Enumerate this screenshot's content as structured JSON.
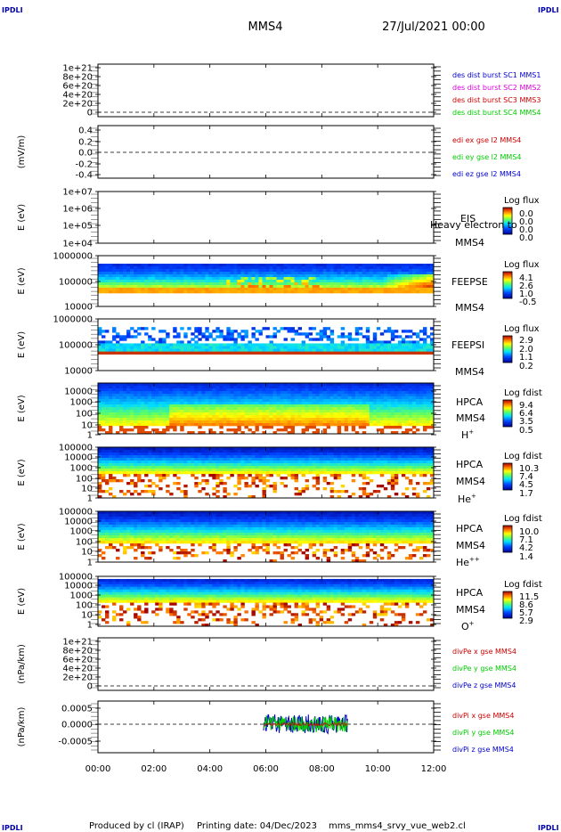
{
  "header": {
    "left_logo": "IPDLI",
    "right_logo": "IPDLI",
    "title": "MMS4",
    "datetime": "27/Jul/2021 00:00"
  },
  "footer": {
    "left_logo": "IPDLI",
    "right_logo": "IPDLI",
    "credit": "Produced by cl (IRAP)",
    "printing_date": "Printing date: 04/Dec/2023",
    "filename": "mms_mms4_srvy_vue_web2.cl"
  },
  "time_axis": {
    "ticks": [
      "00:00",
      "02:00",
      "04:00",
      "06:00",
      "08:00",
      "10:00",
      "12:00"
    ]
  },
  "colors": {
    "red": "#cc0000",
    "magenta": "#dd00dd",
    "green": "#00cc00",
    "blue": "#0000cc"
  },
  "chart_data": [
    {
      "type": "line",
      "id": "des_dist",
      "ylabel": "",
      "yticks": [
        "1e+21",
        "8e+20",
        "6e+20",
        "4e+20",
        "2e+20",
        "0"
      ],
      "dashed_zero": true,
      "legend": [
        {
          "text": "des dist burst SC1 MMS1",
          "color": "#0000cc"
        },
        {
          "text": "des dist burst SC2 MMS2",
          "color": "#dd00dd"
        },
        {
          "text": "des dist burst SC3 MMS3",
          "color": "#cc0000"
        },
        {
          "text": "des dist burst SC4 MMS4",
          "color": "#00cc00"
        }
      ]
    },
    {
      "type": "line",
      "id": "edi_e",
      "ylabel": "(mV/m)",
      "yticks": [
        "0.4",
        "0.2",
        "0.0",
        "-0.2",
        "-0.4"
      ],
      "dashed_zero": true,
      "legend": [
        {
          "text": "edi ex gse l2 MMS4",
          "color": "#cc0000"
        },
        {
          "text": "edi ey gse l2 MMS4",
          "color": "#00cc00"
        },
        {
          "text": "edi ez gse l2 MMS4",
          "color": "#0000cc"
        }
      ]
    },
    {
      "type": "heatmap",
      "id": "eis",
      "ylabel": "E (eV)",
      "yticks": [
        "1e+07",
        "1e+06",
        "1e+05",
        "1e+04"
      ],
      "instrument": "EIS",
      "mission": "MMS4",
      "overlay": "Heavy electron to",
      "cbar_title": "Log flux",
      "cbar_ticks": [
        "0.0",
        "0.0",
        "0.0",
        "0.0"
      ]
    },
    {
      "type": "heatmap",
      "id": "feepse",
      "ylabel": "E (eV)",
      "yticks": [
        "1000000",
        "100000",
        "10000"
      ],
      "instrument": "FEEPSE",
      "mission": "MMS4",
      "cbar_title": "Log flux",
      "cbar_ticks": [
        "4.1",
        "2.6",
        "1.0",
        "-0.5"
      ]
    },
    {
      "type": "heatmap",
      "id": "feepsi",
      "ylabel": "E (eV)",
      "yticks": [
        "1000000",
        "100000",
        "10000"
      ],
      "instrument": "FEEPSI",
      "mission": "MMS4",
      "cbar_title": "Log flux",
      "cbar_ticks": [
        "2.9",
        "2.0",
        "1.1",
        "0.2"
      ]
    },
    {
      "type": "heatmap",
      "id": "hpca_h",
      "ylabel": "E (eV)",
      "yticks": [
        "10000",
        "1000",
        "100",
        "10",
        "1"
      ],
      "instrument": "HPCA",
      "mission": "MMS4",
      "species": "H",
      "species_sup": "+",
      "cbar_title": "Log fdist",
      "cbar_ticks": [
        "9.4",
        "6.4",
        "3.5",
        "0.5"
      ]
    },
    {
      "type": "heatmap",
      "id": "hpca_he",
      "ylabel": "E (eV)",
      "yticks": [
        "100000",
        "10000",
        "1000",
        "100",
        "10",
        "1"
      ],
      "instrument": "HPCA",
      "mission": "MMS4",
      "species": "He",
      "species_sup": "+",
      "cbar_title": "Log fdist",
      "cbar_ticks": [
        "10.3",
        "7.4",
        "4.5",
        "1.7"
      ]
    },
    {
      "type": "heatmap",
      "id": "hpca_hepp",
      "ylabel": "E (eV)",
      "yticks": [
        "100000",
        "10000",
        "1000",
        "100",
        "10",
        "1"
      ],
      "instrument": "HPCA",
      "mission": "MMS4",
      "species": "He",
      "species_sup": "++",
      "cbar_title": "Log fdist",
      "cbar_ticks": [
        "10.0",
        "7.1",
        "4.2",
        "1.4"
      ]
    },
    {
      "type": "heatmap",
      "id": "hpca_o",
      "ylabel": "E (eV)",
      "yticks": [
        "100000",
        "10000",
        "1000",
        "100",
        "10",
        "1"
      ],
      "instrument": "HPCA",
      "mission": "MMS4",
      "species": "O",
      "species_sup": "+",
      "cbar_title": "Log fdist",
      "cbar_ticks": [
        "11.5",
        "8.6",
        "5.7",
        "2.9"
      ]
    },
    {
      "type": "line",
      "id": "divpe",
      "ylabel": "(nPa/km)",
      "yticks": [
        "1e+21",
        "8e+20",
        "6e+20",
        "4e+20",
        "2e+20",
        "0"
      ],
      "dashed_zero": true,
      "legend": [
        {
          "text": "divPe x gse MMS4",
          "color": "#cc0000"
        },
        {
          "text": "divPe y gse MMS4",
          "color": "#00cc00"
        },
        {
          "text": "divPe z gse MMS4",
          "color": "#0000cc"
        }
      ]
    },
    {
      "type": "line",
      "id": "divpi",
      "ylabel": "(nPa/km)",
      "yticks": [
        "0.0005",
        "0.0000",
        "-0.0005"
      ],
      "dashed_zero": true,
      "xlim": [
        "00:00",
        "12:00"
      ],
      "data_span": [
        "05:55",
        "08:55"
      ],
      "legend": [
        {
          "text": "divPi x gse MMS4",
          "color": "#cc0000"
        },
        {
          "text": "divPi y gse MMS4",
          "color": "#00cc00"
        },
        {
          "text": "divPi z gse MMS4",
          "color": "#0000cc"
        }
      ]
    }
  ]
}
